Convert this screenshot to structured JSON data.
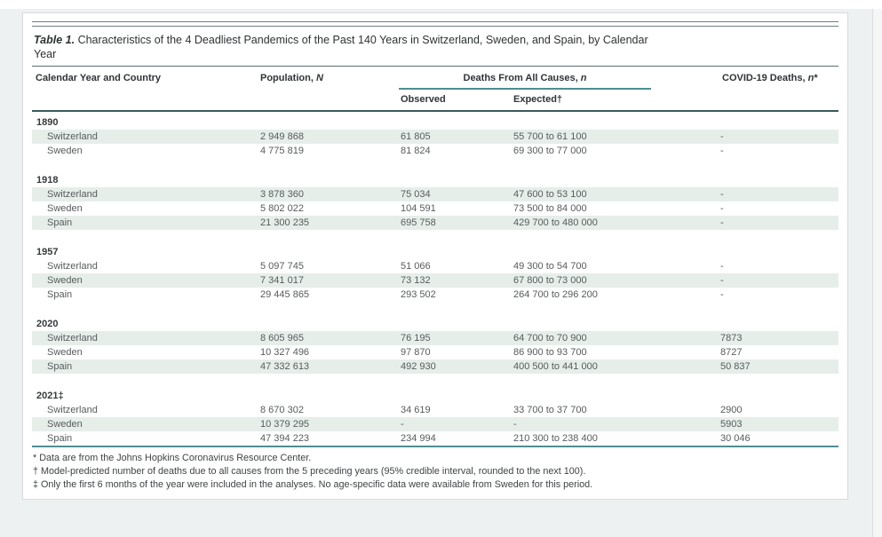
{
  "table": {
    "title": {
      "label": "Table 1.",
      "line1": "Characteristics of the 4 Deadliest Pandemics of the Past 140 Years in Switzerland, Sweden, and Spain, by Calendar",
      "line2": "Year"
    },
    "header": {
      "col1": "Calendar Year and Country",
      "col2_text": "Population, ",
      "col2_italic": "N",
      "spanner_text": "Deaths From All Causes, ",
      "spanner_italic": "n",
      "sub_observed": "Observed",
      "sub_expected": "Expected†",
      "col5_text": "COVID-19 Deaths, ",
      "col5_italic": "n",
      "col5_suffix": "*"
    },
    "sections": [
      {
        "year": "1890",
        "rows": [
          {
            "country": "Switzerland",
            "population": "2 949 868",
            "observed": "61 805",
            "expected": "55 700 to 61 100",
            "covid": "-",
            "shaded": true
          },
          {
            "country": "Sweden",
            "population": "4 775 819",
            "observed": "81 824",
            "expected": "69 300 to 77 000",
            "covid": "-",
            "shaded": false
          }
        ]
      },
      {
        "year": "1918",
        "rows": [
          {
            "country": "Switzerland",
            "population": "3 878 360",
            "observed": "75 034",
            "expected": "47 600 to 53 100",
            "covid": "-",
            "shaded": true
          },
          {
            "country": "Sweden",
            "population": "5 802 022",
            "observed": "104 591",
            "expected": "73 500 to 84 000",
            "covid": "-",
            "shaded": false
          },
          {
            "country": "Spain",
            "population": "21 300 235",
            "observed": "695 758",
            "expected": "429 700 to 480 000",
            "covid": "-",
            "shaded": true
          }
        ]
      },
      {
        "year": "1957",
        "rows": [
          {
            "country": "Switzerland",
            "population": "5 097 745",
            "observed": "51 066",
            "expected": "49 300 to 54 700",
            "covid": "-",
            "shaded": false
          },
          {
            "country": "Sweden",
            "population": "7 341 017",
            "observed": "73 132",
            "expected": "67 800 to 73 000",
            "covid": "-",
            "shaded": true
          },
          {
            "country": "Spain",
            "population": "29 445 865",
            "observed": "293 502",
            "expected": "264 700 to 296 200",
            "covid": "-",
            "shaded": false
          }
        ]
      },
      {
        "year": "2020",
        "rows": [
          {
            "country": "Switzerland",
            "population": "8 605 965",
            "observed": "76 195",
            "expected": "64 700 to 70 900",
            "covid": "7873",
            "shaded": true
          },
          {
            "country": "Sweden",
            "population": "10 327 496",
            "observed": "97 870",
            "expected": "86 900 to 93 700",
            "covid": "8727",
            "shaded": false
          },
          {
            "country": "Spain",
            "population": "47 332 613",
            "observed": "492 930",
            "expected": "400 500 to 441 000",
            "covid": "50 837",
            "shaded": true
          }
        ]
      },
      {
        "year": "2021‡",
        "rows": [
          {
            "country": "Switzerland",
            "population": "8 670 302",
            "observed": "34 619",
            "expected": "33 700 to 37 700",
            "covid": "2900",
            "shaded": false
          },
          {
            "country": "Sweden",
            "population": "10 379 295",
            "observed": "-",
            "expected": "-",
            "covid": "5903",
            "shaded": true
          },
          {
            "country": "Spain",
            "population": "47 394 223",
            "observed": "234 994",
            "expected": "210 300 to 238 400",
            "covid": "30 046",
            "shaded": false
          }
        ]
      }
    ],
    "footnotes": [
      "* Data are from the Johns Hopkins Coronavirus Resource Center.",
      "† Model-predicted number of deaths due to all causes from the 5 preceding years (95% credible interval, rounded to the next 100).",
      "‡ Only the first 6 months of the year were included in the analyses. No age-specific data were available from Sweden for this period."
    ],
    "colors": {
      "accent_teal": "#4f8d90",
      "header_rule": "#3b5a5c",
      "row_shade": "#e6eeea"
    }
  }
}
